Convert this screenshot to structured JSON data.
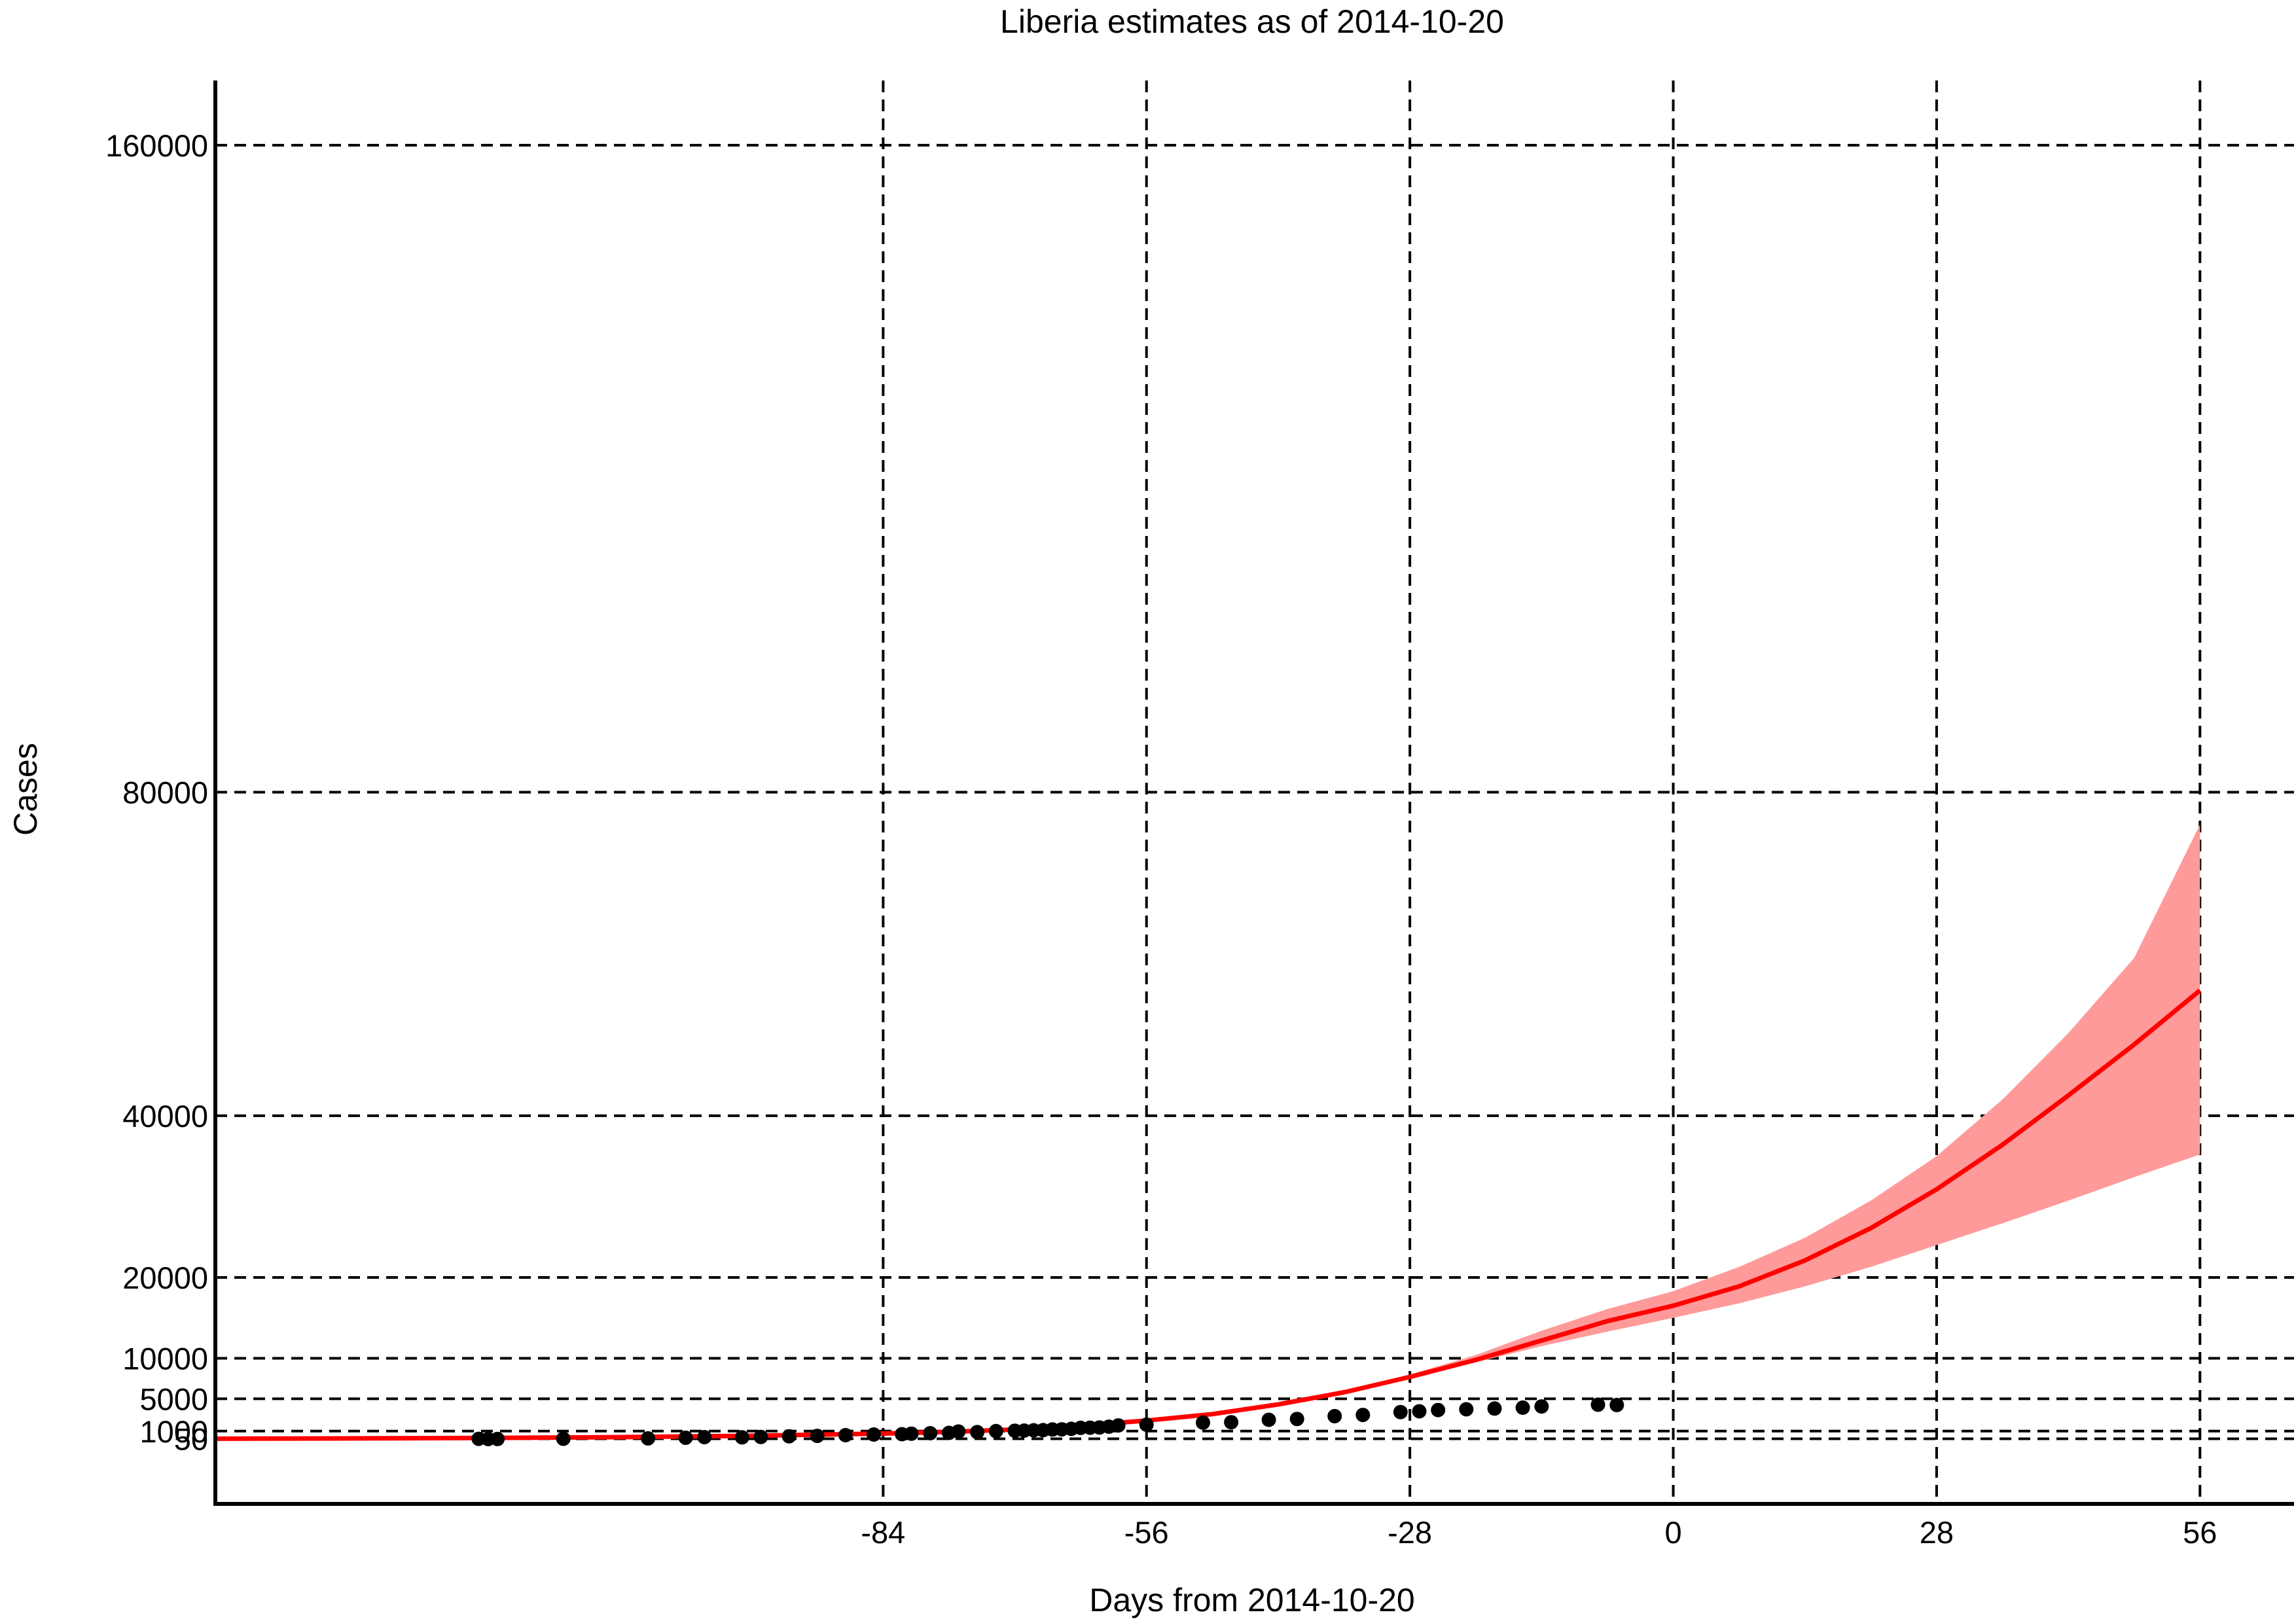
{
  "chart_data": {
    "type": "line",
    "title": "Liberia estimates as of 2014-10-20",
    "xlabel": "Days from 2014-10-20",
    "ylabel": "Cases",
    "xlim": [
      -155,
      66
    ],
    "ylim": [
      -8000,
      168000
    ],
    "x_ticks": [
      -84,
      -56,
      -28,
      0,
      28,
      56
    ],
    "y_ticks": [
      50,
      1000,
      5000,
      10000,
      20000,
      40000,
      80000,
      160000
    ],
    "y_tick_labels": [
      "50",
      "1000",
      "5000",
      "10000",
      "20000",
      "40000",
      "80000",
      "160000"
    ],
    "grid": true,
    "grid_style": "dashed",
    "colors": {
      "model_line": "#ff0000",
      "confidence_band": "#ff9a9a",
      "observed_points": "#000000",
      "grid": "#000000",
      "axes": "#000000"
    },
    "series": [
      {
        "kind": "model_fit",
        "x": [
          -155,
          -140,
          -126,
          -112,
          -98,
          -84,
          -77,
          -70,
          -63,
          -56,
          -49,
          -42,
          -35,
          -28,
          -21,
          -14,
          -7,
          0,
          7,
          14,
          21,
          28,
          35,
          42,
          49,
          56
        ],
        "y": [
          60,
          100,
          160,
          250,
          420,
          700,
          900,
          1200,
          1700,
          2300,
          3100,
          4300,
          5800,
          7700,
          9800,
          12200,
          14600,
          16500,
          18900,
          22100,
          26100,
          30900,
          36400,
          42500,
          48800,
          55500
        ]
      },
      {
        "kind": "confidence_band",
        "x": [
          -42,
          -35,
          -28,
          -21,
          -14,
          -7,
          0,
          7,
          14,
          21,
          28,
          35,
          42,
          49,
          56
        ],
        "lower": [
          4300,
          5800,
          7600,
          9500,
          11500,
          13300,
          15000,
          16800,
          18900,
          21300,
          24000,
          26700,
          29500,
          32400,
          35200
        ],
        "upper": [
          4300,
          5900,
          8000,
          10400,
          13400,
          16100,
          18300,
          21300,
          24900,
          29500,
          35000,
          42000,
          50200,
          59500,
          76000
        ]
      },
      {
        "kind": "observed",
        "x": [
          -127,
          -126,
          -125,
          -118,
          -109,
          -105,
          -103,
          -99,
          -97,
          -94,
          -91,
          -88,
          -85,
          -82,
          -81,
          -79,
          -77,
          -76,
          -74,
          -72,
          -70,
          -69,
          -68,
          -67,
          -66,
          -65,
          -64,
          -63,
          -62,
          -61,
          -60,
          -59,
          -56,
          -50,
          -47,
          -43,
          -40,
          -36,
          -33,
          -29,
          -27,
          -25,
          -22,
          -19,
          -16,
          -14,
          -8,
          -6
        ],
        "y": [
          40,
          20,
          30,
          50,
          100,
          180,
          250,
          230,
          280,
          360,
          410,
          500,
          580,
          620,
          680,
          740,
          780,
          950,
          880,
          1000,
          1050,
          1060,
          1100,
          1120,
          1200,
          1220,
          1280,
          1400,
          1420,
          1450,
          1550,
          1700,
          1800,
          2050,
          2100,
          2400,
          2500,
          2850,
          3000,
          3350,
          3450,
          3600,
          3700,
          3790,
          3900,
          4050,
          4270,
          4230
        ]
      }
    ]
  }
}
